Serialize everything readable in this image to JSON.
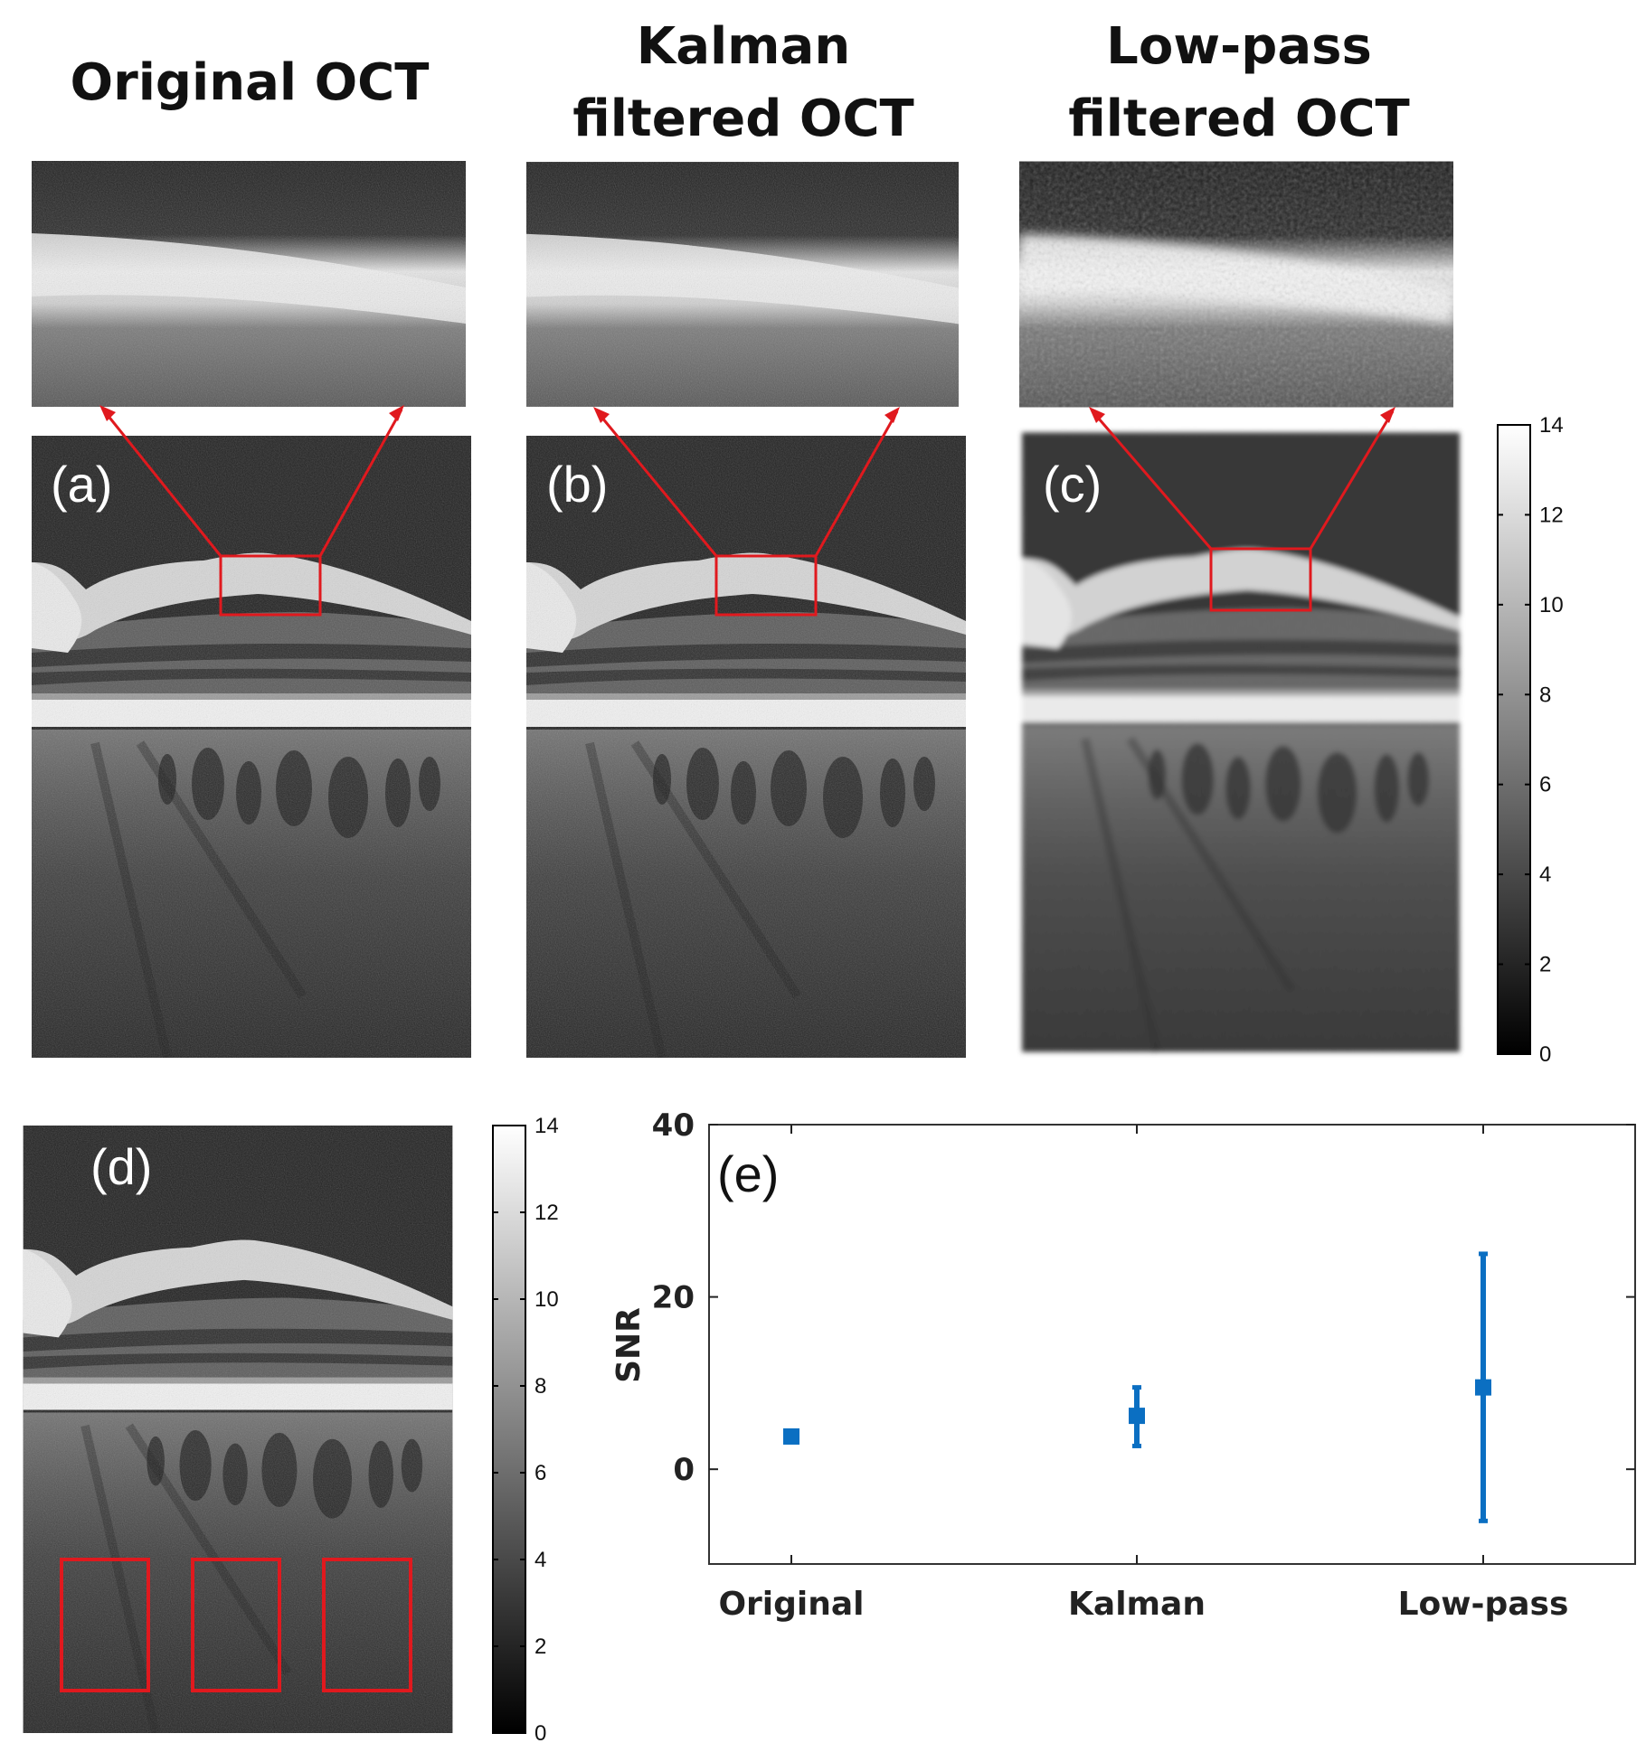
{
  "titles": {
    "a": [
      "Original OCT"
    ],
    "b": [
      "Kalman",
      "filtered OCT"
    ],
    "c": [
      "Low-pass",
      "filtered OCT"
    ]
  },
  "panel_labels": {
    "a": "(a)",
    "b": "(b)",
    "c": "(c)",
    "d": "(d)",
    "e": "(e)"
  },
  "colorbar": {
    "ticks": [
      "0",
      "2",
      "4",
      "6",
      "8",
      "10",
      "12",
      "14"
    ],
    "min": 0,
    "max": 14
  },
  "colors": {
    "roi": "#e0191e",
    "series": "#0b6fc2",
    "axis": "#222222"
  },
  "chart_data": {
    "type": "scatter",
    "title": "",
    "xlabel": "",
    "ylabel": "SNR",
    "categories": [
      "Original",
      "Kalman",
      "Low-pass"
    ],
    "ylim": [
      -11,
      40
    ],
    "yticks": [
      0,
      20,
      40
    ],
    "series": [
      {
        "name": "SNR",
        "values": [
          3.8,
          6.2,
          9.5
        ],
        "error_low": [
          3.6,
          2.7,
          -6.0
        ],
        "error_high": [
          4.0,
          9.5,
          25.0
        ]
      }
    ]
  }
}
